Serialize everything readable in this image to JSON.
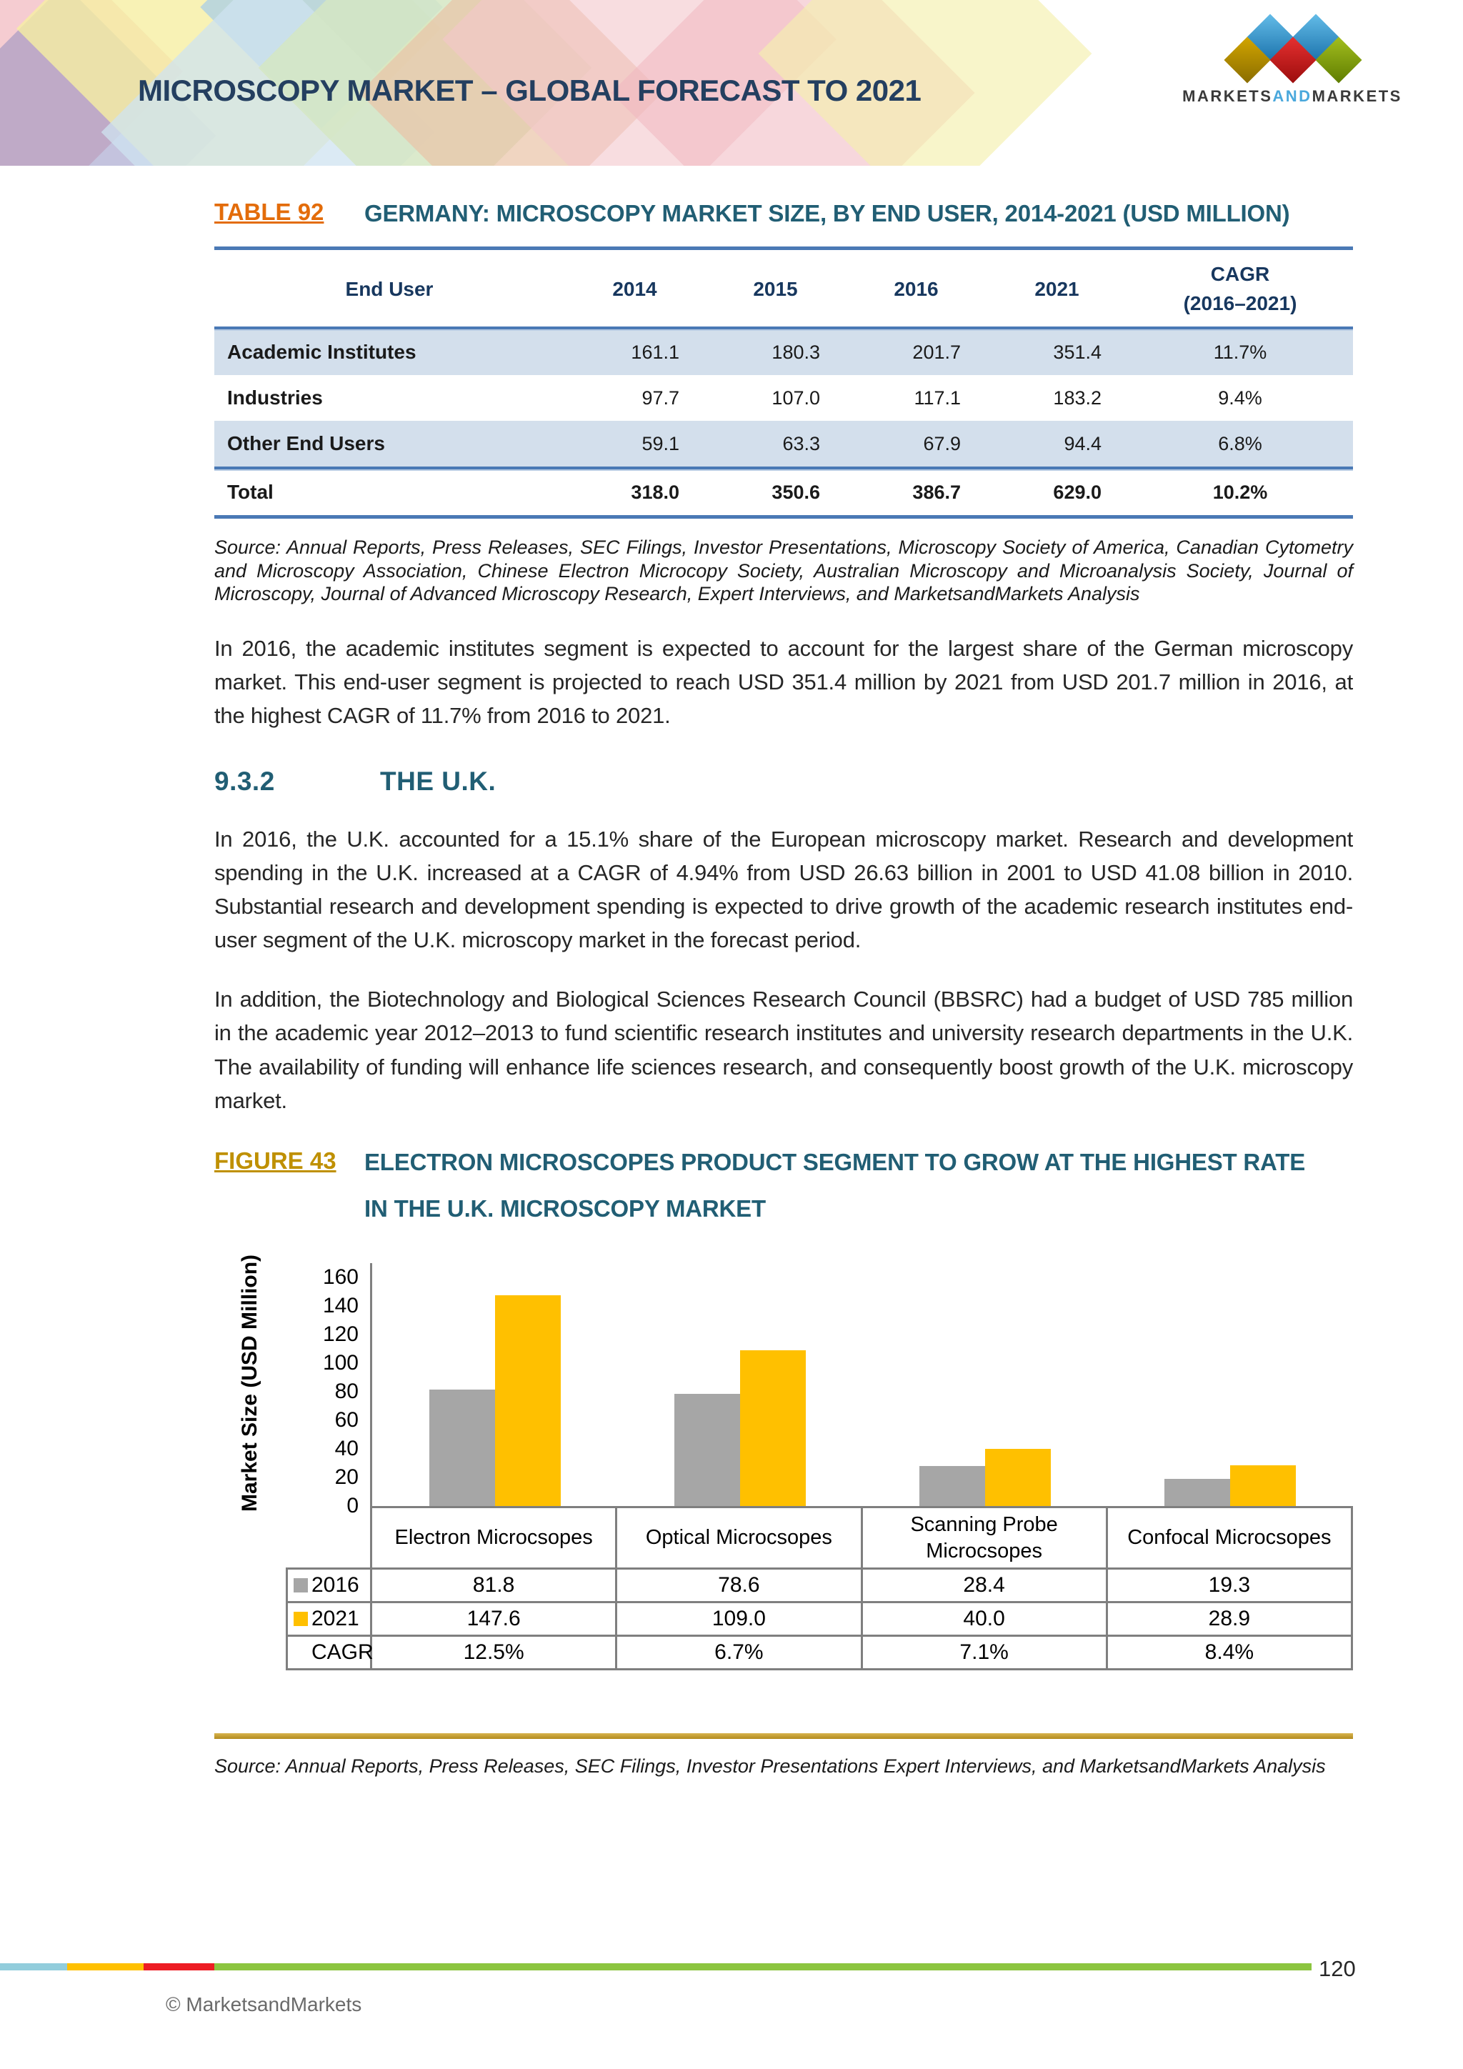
{
  "header": {
    "title": "MICROSCOPY MARKET – GLOBAL FORECAST TO 2021",
    "logo": {
      "part1": "MARKETS",
      "part2": "AND",
      "part3": "MARKETS"
    }
  },
  "table_section": {
    "label": "TABLE 92",
    "title": "GERMANY: MICROSCOPY MARKET SIZE, BY END USER, 2014-2021 (USD MILLION)",
    "col_headers": {
      "end_user": "End User",
      "y2014": "2014",
      "y2015": "2015",
      "y2016": "2016",
      "y2021": "2021",
      "cagr_line1": "CAGR",
      "cagr_line2": "(2016–2021)"
    },
    "rows": [
      {
        "label": "Academic Institutes",
        "values": [
          "161.1",
          "180.3",
          "201.7",
          "351.4",
          "11.7%"
        ]
      },
      {
        "label": "Industries",
        "values": [
          "97.7",
          "107.0",
          "117.1",
          "183.2",
          "9.4%"
        ]
      },
      {
        "label": "Other End Users",
        "values": [
          "59.1",
          "63.3",
          "67.9",
          "94.4",
          "6.8%"
        ]
      }
    ],
    "total": {
      "label": "Total",
      "values": [
        "318.0",
        "350.6",
        "386.7",
        "629.0",
        "10.2%"
      ]
    },
    "source": "Source: Annual Reports, Press Releases, SEC Filings, Investor Presentations, Microscopy Society of America, Canadian Cytometry and Microscopy Association, Chinese Electron Microcopy Society, Australian Microscopy and Microanalysis Society, Journal of Microscopy, Journal of Advanced Microscopy Research, Expert Interviews, and MarketsandMarkets Analysis"
  },
  "body": {
    "para1": "In 2016, the academic institutes segment is expected to account for the largest share of the German microscopy market. This end-user segment is projected to reach USD 351.4 million by 2021 from USD 201.7 million in 2016, at the highest CAGR of 11.7% from 2016 to 2021.",
    "section_number": "9.3.2",
    "section_title": "THE U.K.",
    "para2": "In 2016, the U.K. accounted for a 15.1% share of the European microscopy market. Research and development spending in the U.K. increased at a CAGR of 4.94% from USD 26.63 billion in 2001 to USD 41.08 billion in 2010. Substantial research and development spending is expected to drive growth of the academic research institutes end-user segment of the U.K. microscopy market in the forecast period.",
    "para3": "In addition, the Biotechnology and Biological Sciences Research Council (BBSRC) had a budget of USD 785 million in the academic year 2012–2013 to fund scientific research institutes and university research departments in the U.K. The availability of funding will enhance life sciences research, and consequently boost growth of the U.K. microscopy market."
  },
  "figure_section": {
    "label": "FIGURE 43",
    "title_line1": "ELECTRON MICROSCOPES PRODUCT SEGMENT TO GROW AT THE HIGHEST RATE",
    "title_line2": "IN THE U.K. MICROSCOPY MARKET",
    "source": "Source: Annual Reports, Press Releases, SEC Filings, Investor Presentations Expert Interviews, and MarketsandMarkets Analysis"
  },
  "chart_data": {
    "type": "bar",
    "title": "Electron Microscopes product segment to grow at the highest rate in the U.K. microscopy market",
    "categories": [
      "Electron Microcsopes",
      "Optical Microcsopes",
      "Scanning Probe Microcsopes",
      "Confocal Microcsopes"
    ],
    "series": [
      {
        "name": "2016",
        "color": "#a6a6a6",
        "values": [
          81.8,
          78.6,
          28.4,
          19.3
        ],
        "display": [
          "81.8",
          "78.6",
          "28.4",
          "19.3"
        ]
      },
      {
        "name": "2021",
        "color": "#ffc000",
        "values": [
          147.6,
          109.0,
          40.0,
          28.9
        ],
        "display": [
          "147.6",
          "109.0",
          "40.0",
          "28.9"
        ]
      }
    ],
    "cagr": {
      "label": "CAGR",
      "values": [
        "12.5%",
        "6.7%",
        "7.1%",
        "8.4%"
      ]
    },
    "ylabel": "Market Size (USD Million)",
    "xlabel": "",
    "ylim": [
      0,
      160
    ],
    "ytick_step": 20,
    "grid": false,
    "legend_position": "table-left"
  },
  "footer": {
    "page_number": "120",
    "copyright": "© MarketsandMarkets",
    "stripe_colors": [
      "#92cddc",
      "#ffc000",
      "#ed1c24",
      "#8cc540"
    ]
  },
  "colors": {
    "title_navy": "#243f60",
    "heading_teal": "#215e74",
    "table_label_orange": "#e36c0a",
    "figure_label_gold": "#bf9000",
    "table_rule_blue": "#4a79b5",
    "row_shade_blue": "#d3dfec",
    "bar_gray": "#a6a6a6",
    "bar_yellow": "#ffc000"
  }
}
